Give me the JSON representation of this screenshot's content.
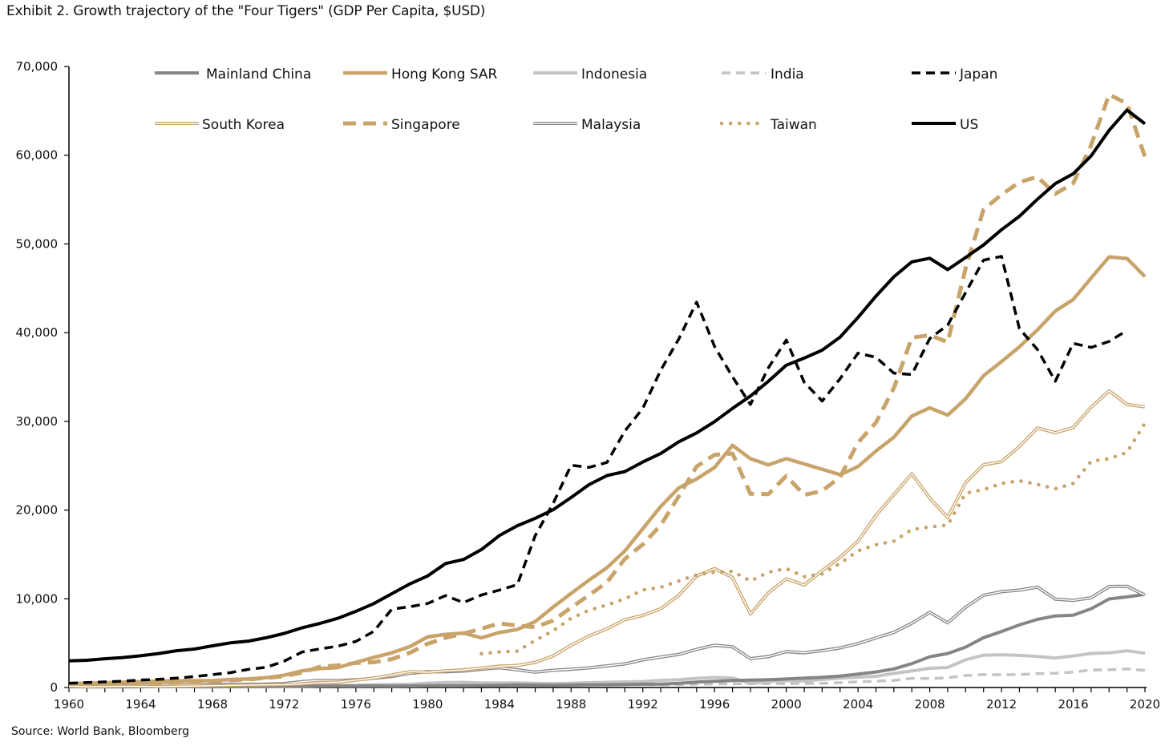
{
  "title": "Exhibit 2. Growth trajectory of the \"Four Tigers\" (GDP Per Capita, $USD)",
  "source": "Source: World Bank, Bloomberg",
  "chart_data": {
    "type": "line",
    "title": "Exhibit 2. Growth trajectory of the \"Four Tigers\" (GDP Per Capita, $USD)",
    "xlabel": "",
    "ylabel": "",
    "xlim": [
      1960,
      2020
    ],
    "ylim": [
      0,
      70000
    ],
    "grid": false,
    "legend_position": "top",
    "x_tick_labels": [
      "1960",
      "1964",
      "1968",
      "1972",
      "1976",
      "1980",
      "1984",
      "1988",
      "1992",
      "1996",
      "2000",
      "2004",
      "2008",
      "2012",
      "2016",
      "2020"
    ],
    "y_tick_labels": [
      "0",
      "10,000",
      "20,000",
      "30,000",
      "40,000",
      "50,000",
      "60,000",
      "70,000"
    ],
    "x": [
      1960,
      1961,
      1962,
      1963,
      1964,
      1965,
      1966,
      1967,
      1968,
      1969,
      1970,
      1971,
      1972,
      1973,
      1974,
      1975,
      1976,
      1977,
      1978,
      1979,
      1980,
      1981,
      1982,
      1983,
      1984,
      1985,
      1986,
      1987,
      1988,
      1989,
      1990,
      1991,
      1992,
      1993,
      1994,
      1995,
      1996,
      1997,
      1998,
      1999,
      2000,
      2001,
      2002,
      2003,
      2004,
      2005,
      2006,
      2007,
      2008,
      2009,
      2010,
      2011,
      2012,
      2013,
      2014,
      2015,
      2016,
      2017,
      2018,
      2019,
      2020
    ],
    "series": [
      {
        "name": "Mainland China",
        "color": "#858585",
        "style": "solid",
        "values": [
          90,
          76,
          71,
          75,
          85,
          98,
          104,
          97,
          91,
          100,
          113,
          119,
          132,
          157,
          160,
          178,
          165,
          185,
          156,
          183,
          195,
          197,
          203,
          225,
          251,
          294,
          282,
          252,
          283,
          310,
          318,
          333,
          366,
          377,
          473,
          610,
          709,
          782,
          829,
          873,
          959,
          1053,
          1149,
          1289,
          1509,
          1753,
          2099,
          2694,
          3468,
          3832,
          4550,
          5618,
          6317,
          7051,
          7679,
          8067,
          8148,
          8879,
          9977,
          10217,
          10500
        ]
      },
      {
        "name": "Hong Kong SAR",
        "color": "#C9A46A",
        "style": "solid-thick",
        "values": [
          429,
          472,
          529,
          600,
          660,
          730,
          740,
          768,
          780,
          900,
          960,
          1100,
          1380,
          1880,
          2130,
          2250,
          2840,
          3400,
          3900,
          4600,
          5700,
          5990,
          6130,
          5600,
          6200,
          6540,
          7430,
          9070,
          10600,
          12100,
          13500,
          15400,
          17900,
          20400,
          22500,
          23500,
          24800,
          27300,
          25800,
          25100,
          25800,
          25200,
          24600,
          23990,
          24900,
          26650,
          28220,
          30590,
          31520,
          30700,
          32550,
          35140,
          36730,
          38400,
          40300,
          42430,
          43730,
          46160,
          48540,
          48360,
          46320
        ]
      },
      {
        "name": "Indonesia",
        "color": "#C4C4C4",
        "style": "solid",
        "values": [
          null,
          null,
          null,
          null,
          null,
          null,
          null,
          54,
          65,
          77,
          82,
          84,
          92,
          128,
          190,
          220,
          260,
          308,
          341,
          365,
          491,
          569,
          579,
          507,
          524,
          517,
          472,
          444,
          489,
          544,
          585,
          631,
          670,
          809,
          882,
          1026,
          1137,
          1064,
          464,
          671,
          780,
          748,
          900,
          1066,
          1150,
          1260,
          1590,
          1860,
          2168,
          2262,
          3122,
          3643,
          3694,
          3623,
          3492,
          3323,
          3563,
          3837,
          3903,
          4135,
          3870
        ]
      },
      {
        "name": "India",
        "color": "#C4C4C4",
        "style": "dashed",
        "values": [
          82,
          85,
          89,
          101,
          115,
          119,
          90,
          96,
          99,
          107,
          112,
          118,
          122,
          143,
          163,
          158,
          161,
          186,
          205,
          224,
          267,
          271,
          274,
          291,
          277,
          296,
          310,
          340,
          354,
          346,
          368,
          303,
          317,
          301,
          346,
          374,
          400,
          415,
          413,
          442,
          443,
          452,
          471,
          547,
          628,
          714,
          807,
          1028,
          999,
          1102,
          1358,
          1458,
          1444,
          1450,
          1574,
          1606,
          1733,
          1981,
          1997,
          2100,
          1930
        ]
      },
      {
        "name": "Japan",
        "color": "#000000",
        "style": "dashed",
        "values": [
          479,
          564,
          633,
          718,
          836,
          920,
          1059,
          1229,
          1451,
          1669,
          2037,
          2272,
          2967,
          3997,
          4354,
          4659,
          5197,
          6335,
          8821,
          9105,
          9463,
          10361,
          9578,
          10425,
          10984,
          11585,
          17112,
          20745,
          25052,
          24813,
          25371,
          28925,
          31465,
          35766,
          39268,
          43440,
          38437,
          35022,
          31903,
          36027,
          39169,
          34406,
          32289,
          34808,
          37689,
          37218,
          35434,
          35275,
          39339,
          40855,
          44508,
          48168,
          48603,
          40454,
          38109,
          34524,
          38794,
          38332,
          39009,
          40247,
          null
        ]
      },
      {
        "name": "South Korea",
        "color": "#C9A46A",
        "style": "double",
        "values": [
          158,
          94,
          106,
          146,
          124,
          108,
          133,
          161,
          198,
          243,
          279,
          301,
          323,
          406,
          563,
          617,
          834,
          1055,
          1405,
          1784,
          1715,
          1883,
          1993,
          2199,
          2413,
          2482,
          2835,
          3555,
          4749,
          5817,
          6610,
          7637,
          8127,
          8885,
          10385,
          12565,
          13403,
          12398,
          8282,
          10672,
          12257,
          11561,
          13165,
          14673,
          16496,
          19403,
          21743,
          24086,
          21350,
          19144,
          23087,
          25100,
          25459,
          27180,
          29250,
          28730,
          29290,
          31600,
          33430,
          31900,
          31630
        ]
      },
      {
        "name": "Singapore",
        "color": "#C9A46A",
        "style": "dashed-thick",
        "values": [
          428,
          449,
          472,
          511,
          485,
          517,
          567,
          626,
          708,
          813,
          925,
          1071,
          1264,
          1685,
          2341,
          2490,
          2766,
          2845,
          3193,
          3900,
          4929,
          5596,
          6078,
          6633,
          7228,
          6974,
          6800,
          7539,
          9018,
          10394,
          11862,
          14502,
          16135,
          18302,
          21553,
          24915,
          26233,
          26376,
          21829,
          21796,
          23853,
          21700,
          22160,
          23730,
          27610,
          29870,
          33770,
          39430,
          39720,
          38930,
          47240,
          53890,
          55550,
          56970,
          57560,
          55650,
          56830,
          61160,
          66840,
          65830,
          59800
        ]
      },
      {
        "name": "Malaysia",
        "color": "#858585",
        "style": "double",
        "values": [
          235,
          236,
          246,
          265,
          278,
          309,
          322,
          320,
          326,
          354,
          358,
          378,
          443,
          665,
          801,
          765,
          885,
          1027,
          1253,
          1589,
          1775,
          1770,
          1852,
          2049,
          2235,
          2000,
          1729,
          1941,
          2063,
          2217,
          2441,
          2653,
          3114,
          3432,
          3728,
          4295,
          4766,
          4587,
          3256,
          3485,
          4044,
          3913,
          4166,
          4462,
          4952,
          5587,
          6210,
          7243,
          8475,
          7292,
          9041,
          10400,
          10800,
          10970,
          11320,
          9960,
          9820,
          10120,
          11380,
          11410,
          10410
        ]
      },
      {
        "name": "Taiwan",
        "color": "#C9A46A",
        "style": "dotted",
        "values": [
          null,
          null,
          null,
          null,
          null,
          null,
          null,
          null,
          null,
          null,
          null,
          null,
          null,
          null,
          null,
          null,
          null,
          null,
          null,
          null,
          null,
          null,
          null,
          3800,
          4000,
          4100,
          5300,
          6400,
          7800,
          8700,
          9300,
          10000,
          11000,
          11300,
          12000,
          12700,
          13000,
          13100,
          12000,
          13000,
          13400,
          12500,
          12800,
          14000,
          15400,
          16100,
          16500,
          17800,
          18100,
          18300,
          21900,
          22300,
          23000,
          23300,
          22900,
          22400,
          23000,
          25500,
          25800,
          26500,
          29800
        ]
      },
      {
        "name": "US",
        "color": "#000000",
        "style": "solid",
        "values": [
          3007,
          3067,
          3244,
          3375,
          3574,
          3828,
          4146,
          4336,
          4696,
          5032,
          5234,
          5609,
          6094,
          6726,
          7226,
          7801,
          8592,
          9453,
          10565,
          11674,
          12575,
          13976,
          14434,
          15544,
          17121,
          18237,
          19071,
          20039,
          21418,
          22857,
          23889,
          24342,
          25419,
          26387,
          27695,
          28691,
          29968,
          31459,
          32854,
          34515,
          36330,
          37134,
          38023,
          39496,
          41713,
          44115,
          46299,
          47976,
          48383,
          47100,
          48467,
          49883,
          51603,
          53107,
          55033,
          56803,
          57904,
          59928,
          62805,
          65095,
          63544
        ]
      }
    ]
  }
}
